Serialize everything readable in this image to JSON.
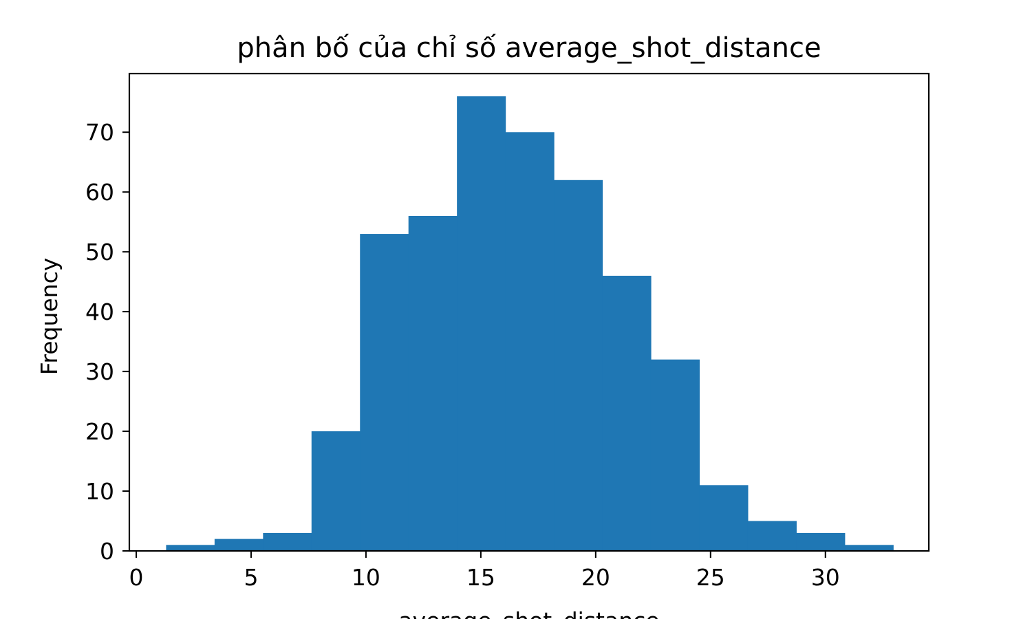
{
  "chart_data": {
    "type": "bar",
    "title": "phân bố của chỉ số average_shot_distance",
    "xlabel": "average_shot_distance",
    "ylabel": "Frequency",
    "bin_edges": [
      1.3,
      3.41,
      5.52,
      7.63,
      9.74,
      11.85,
      13.96,
      16.07,
      18.18,
      20.29,
      22.4,
      24.51,
      26.62,
      28.73,
      30.84,
      32.95
    ],
    "values": [
      1,
      2,
      3,
      20,
      53,
      56,
      76,
      70,
      62,
      46,
      32,
      11,
      5,
      3,
      1
    ],
    "xlim": [
      -0.3,
      34.5
    ],
    "ylim": [
      0,
      79.8
    ],
    "xticks": [
      0,
      5,
      10,
      15,
      20,
      25,
      30
    ],
    "yticks": [
      0,
      10,
      20,
      30,
      40,
      50,
      60,
      70
    ],
    "bar_color": "#1f77b4",
    "grid": false,
    "legend": "none"
  }
}
